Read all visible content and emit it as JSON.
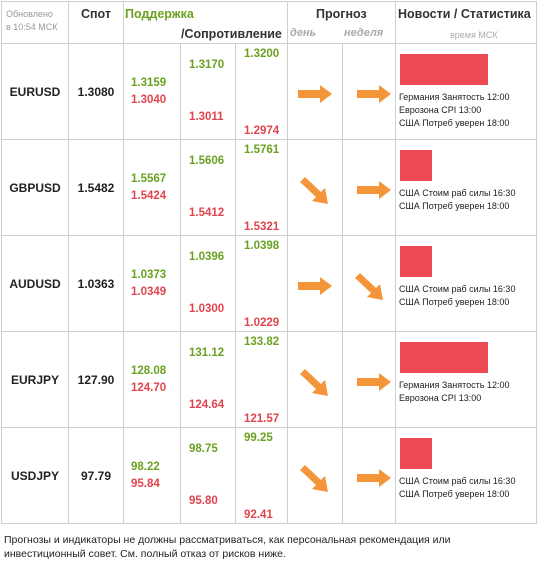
{
  "header": {
    "updated_line1": "Обновлено",
    "updated_line2": "в 10:54 МСК",
    "spot": "Спот",
    "support": "Поддержка",
    "resistance": "/Сопротивление",
    "forecast": "Прогноз",
    "day": "день",
    "week": "неделя",
    "news": "Новости / Статистика",
    "news_time": "время МСК"
  },
  "colors": {
    "green": "#6aa121",
    "red": "#e0454f",
    "arrow": "#f5953a",
    "news_bar": "#ee4a55"
  },
  "rows": [
    {
      "symbol": "EURUSD",
      "spot": "1.3080",
      "s1g": "1.3159",
      "s1r": "1.3040",
      "s2g": "1.3170",
      "s2r": "1.3011",
      "s3g": "1.3200",
      "s3r": "1.2974",
      "day_arrow": "arrow-right-icon",
      "week_arrow": "arrow-right-icon",
      "news_bar_fraction": 1.0,
      "news": [
        "Германия Занятость 12:00",
        "Еврозона CPI 13:00",
        "США Потреб уверен 18:00"
      ]
    },
    {
      "symbol": "GBPUSD",
      "spot": "1.5482",
      "s1g": "1.5567",
      "s1r": "1.5424",
      "s2g": "1.5606",
      "s2r": "1.5412",
      "s3g": "1.5761",
      "s3r": "1.5321",
      "day_arrow": "arrow-down-right-icon",
      "week_arrow": "arrow-right-icon",
      "news_bar_fraction": 0.36,
      "news": [
        "США Стоим раб силы 16:30",
        "США Потреб уверен 18:00"
      ]
    },
    {
      "symbol": "AUDUSD",
      "spot": "1.0363",
      "s1g": "1.0373",
      "s1r": "1.0349",
      "s2g": "1.0396",
      "s2r": "1.0300",
      "s3g": "1.0398",
      "s3r": "1.0229",
      "day_arrow": "arrow-right-icon",
      "week_arrow": "arrow-down-right-icon",
      "news_bar_fraction": 0.36,
      "news": [
        "США Стоим раб силы 16:30",
        "США Потреб уверен 18:00"
      ]
    },
    {
      "symbol": "EURJPY",
      "spot": "127.90",
      "s1g": "128.08",
      "s1r": "124.70",
      "s2g": "131.12",
      "s2r": "124.64",
      "s3g": "133.82",
      "s3r": "121.57",
      "day_arrow": "arrow-down-right-icon",
      "week_arrow": "arrow-right-icon",
      "news_bar_fraction": 1.0,
      "news": [
        "Германия Занятость 12:00",
        "Еврозона CPI 13:00"
      ]
    },
    {
      "symbol": "USDJPY",
      "spot": "97.79",
      "s1g": "98.22",
      "s1r": "95.84",
      "s2g": "98.75",
      "s2r": "95.80",
      "s3g": "99.25",
      "s3r": "92.41",
      "day_arrow": "arrow-down-right-icon",
      "week_arrow": "arrow-right-icon",
      "news_bar_fraction": 0.36,
      "news": [
        "США Стоим раб силы 16:30",
        "США Потреб уверен 18:00"
      ]
    }
  ],
  "disclaimer": "Прогнозы и индикаторы не должны рассматриваться, как персональная рекомендация или инвестиционный совет. См. полный отказ от рисков ниже."
}
